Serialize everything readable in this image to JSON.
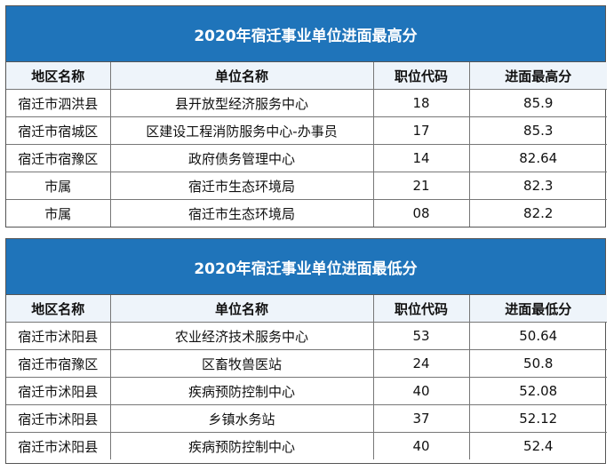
{
  "tables": [
    {
      "title": "2020年宿迁事业单位进面最高分",
      "headers": [
        "地区名称",
        "单位名称",
        "职位代码",
        "进面最高分"
      ],
      "rows": [
        [
          "宿迁市泗洪县",
          "县开放型经济服务中心",
          "18",
          "85.9"
        ],
        [
          "宿迁市宿城区",
          "区建设工程消防服务中心-办事员",
          "17",
          "85.3"
        ],
        [
          "宿迁市宿豫区",
          "政府债务管理中心",
          "14",
          "82.64"
        ],
        [
          "市属",
          "宿迁市生态环境局",
          "21",
          "82.3"
        ],
        [
          "市属",
          "宿迁市生态环境局",
          "08",
          "82.2"
        ]
      ]
    },
    {
      "title": "2020年宿迁事业单位进面最低分",
      "headers": [
        "地区名称",
        "单位名称",
        "职位代码",
        "进面最低分"
      ],
      "rows": [
        [
          "宿迁市沭阳县",
          "农业经济技术服务中心",
          "53",
          "50.64"
        ],
        [
          "宿迁市宿豫区",
          "区畜牧兽医站",
          "24",
          "50.8"
        ],
        [
          "宿迁市沭阳县",
          "疾病预防控制中心",
          "40",
          "52.08"
        ],
        [
          "宿迁市沭阳县",
          "乡镇水务站",
          "37",
          "52.12"
        ],
        [
          "宿迁市沭阳县",
          "疾病预防控制中心",
          "40",
          "52.4"
        ]
      ]
    }
  ],
  "colors": {
    "header_band": "#1f74ba",
    "header_text": "#ffffff"
  }
}
